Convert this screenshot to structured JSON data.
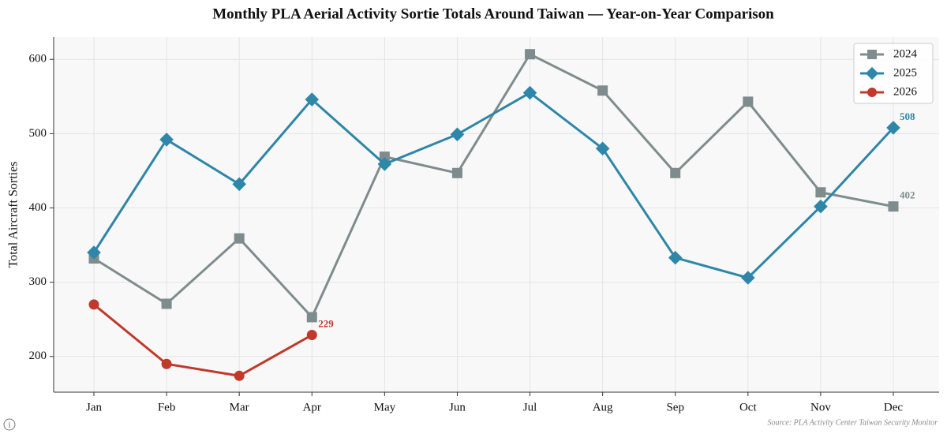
{
  "chart_data": {
    "type": "line",
    "title": "Monthly PLA Aerial Activity Sortie Totals Around Taiwan — Year-on-Year Comparison",
    "y_label": "Total Aircraft Sorties",
    "source": "Source: PLA Activity Center  Taiwan Security Monitor",
    "categories": [
      "Jan",
      "Feb",
      "Mar",
      "Apr",
      "May",
      "Jun",
      "Jul",
      "Aug",
      "Sep",
      "Oct",
      "Nov",
      "Dec"
    ],
    "series": [
      {
        "name": "2024",
        "color": "#7f8c8d",
        "marker": "square",
        "values": [
          332,
          271,
          359,
          253,
          469,
          447,
          607,
          558,
          447,
          543,
          421,
          402
        ],
        "value_labels": [
          null,
          null,
          null,
          null,
          null,
          null,
          null,
          null,
          null,
          null,
          null,
          "402"
        ]
      },
      {
        "name": "2025",
        "color": "#2e86a8",
        "marker": "diamond",
        "values": [
          340,
          492,
          432,
          546,
          459,
          499,
          555,
          480,
          333,
          306,
          402,
          508
        ],
        "value_labels": [
          null,
          null,
          null,
          null,
          null,
          null,
          null,
          null,
          null,
          null,
          null,
          "508"
        ]
      },
      {
        "name": "2026",
        "color": "#c0392b",
        "marker": "circle",
        "values": [
          270,
          190,
          174,
          229,
          null,
          null,
          null,
          null,
          null,
          null,
          null,
          null
        ],
        "value_labels": [
          null,
          null,
          null,
          "229",
          null,
          null,
          null,
          null,
          null,
          null,
          null,
          null
        ]
      }
    ],
    "ylim": [
      152,
      630
    ],
    "yticks": [
      200,
      300,
      400,
      500,
      600
    ],
    "grid": true,
    "legend": "upper right"
  }
}
